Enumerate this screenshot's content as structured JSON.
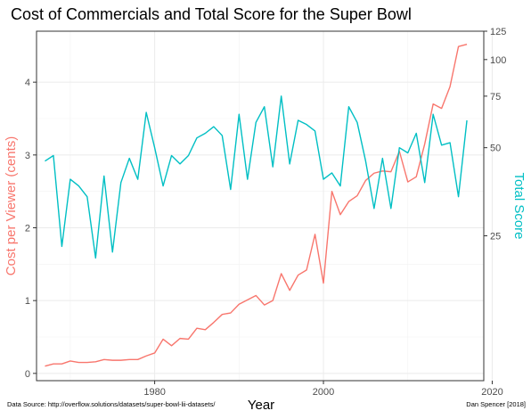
{
  "chart_data": {
    "type": "line",
    "title": "Cost of Commercials and Total Score for the Super Bowl",
    "xlabel": "Year",
    "ylabel_left": "Cost per Viewer (cents)",
    "ylabel_right": "Total Score",
    "caption_left": "Data Source: http://overflow.solutions/datasets/super-bowl-lii-datasets/",
    "caption_right": "Dan Spencer [2018]",
    "xlim": [
      1966,
      2019
    ],
    "ylim_left": [
      -0.1,
      4.7
    ],
    "right_axis_scale": "log",
    "ylim_right": [
      8,
      125
    ],
    "x_ticks": [
      1980,
      2000,
      2020
    ],
    "y_ticks_left": [
      0,
      1,
      2,
      3,
      4
    ],
    "y_ticks_right": [
      25,
      50,
      75,
      100,
      125
    ],
    "grid": true,
    "colors": {
      "cost": "#F8766D",
      "score": "#00BFC4",
      "title": "#000000",
      "axis_text": "#4d4d4d"
    },
    "series": [
      {
        "key": "cost",
        "axis": "left",
        "x": [
          1967,
          1968,
          1969,
          1970,
          1971,
          1972,
          1973,
          1974,
          1975,
          1976,
          1977,
          1978,
          1979,
          1980,
          1981,
          1982,
          1983,
          1984,
          1985,
          1986,
          1987,
          1988,
          1989,
          1990,
          1991,
          1992,
          1993,
          1994,
          1995,
          1996,
          1997,
          1998,
          1999,
          2000,
          2001,
          2002,
          2003,
          2004,
          2005,
          2006,
          2007,
          2008,
          2009,
          2010,
          2011,
          2012,
          2013,
          2014,
          2015,
          2016,
          2017
        ],
        "values": [
          0.1,
          0.13,
          0.13,
          0.17,
          0.15,
          0.15,
          0.16,
          0.19,
          0.18,
          0.18,
          0.19,
          0.19,
          0.24,
          0.28,
          0.47,
          0.38,
          0.48,
          0.47,
          0.62,
          0.6,
          0.7,
          0.81,
          0.83,
          0.95,
          1.01,
          1.07,
          0.94,
          1.0,
          1.37,
          1.14,
          1.35,
          1.42,
          1.91,
          1.24,
          2.5,
          2.18,
          2.36,
          2.44,
          2.65,
          2.75,
          2.78,
          2.77,
          3.05,
          2.63,
          2.7,
          3.15,
          3.7,
          3.64,
          3.94,
          4.49,
          4.52
        ]
      },
      {
        "key": "score",
        "axis": "right",
        "x": [
          1967,
          1968,
          1969,
          1970,
          1971,
          1972,
          1973,
          1974,
          1975,
          1976,
          1977,
          1978,
          1979,
          1980,
          1981,
          1982,
          1983,
          1984,
          1985,
          1986,
          1987,
          1988,
          1989,
          1990,
          1991,
          1992,
          1993,
          1994,
          1995,
          1996,
          1997,
          1998,
          1999,
          2000,
          2001,
          2002,
          2003,
          2004,
          2005,
          2006,
          2007,
          2008,
          2009,
          2010,
          2011,
          2012,
          2013,
          2014,
          2015,
          2016,
          2017
        ],
        "values": [
          45,
          47,
          23,
          39,
          37,
          34,
          21,
          40,
          22,
          38,
          46,
          39,
          66,
          50,
          37,
          47,
          44,
          47,
          54,
          56,
          59,
          55,
          36,
          65,
          39,
          61,
          69,
          43,
          75,
          44,
          62,
          60,
          57,
          39,
          41,
          37,
          69,
          61,
          45,
          31,
          46,
          31,
          50,
          48,
          56,
          38,
          65,
          51,
          52,
          34,
          62
        ]
      }
    ]
  }
}
